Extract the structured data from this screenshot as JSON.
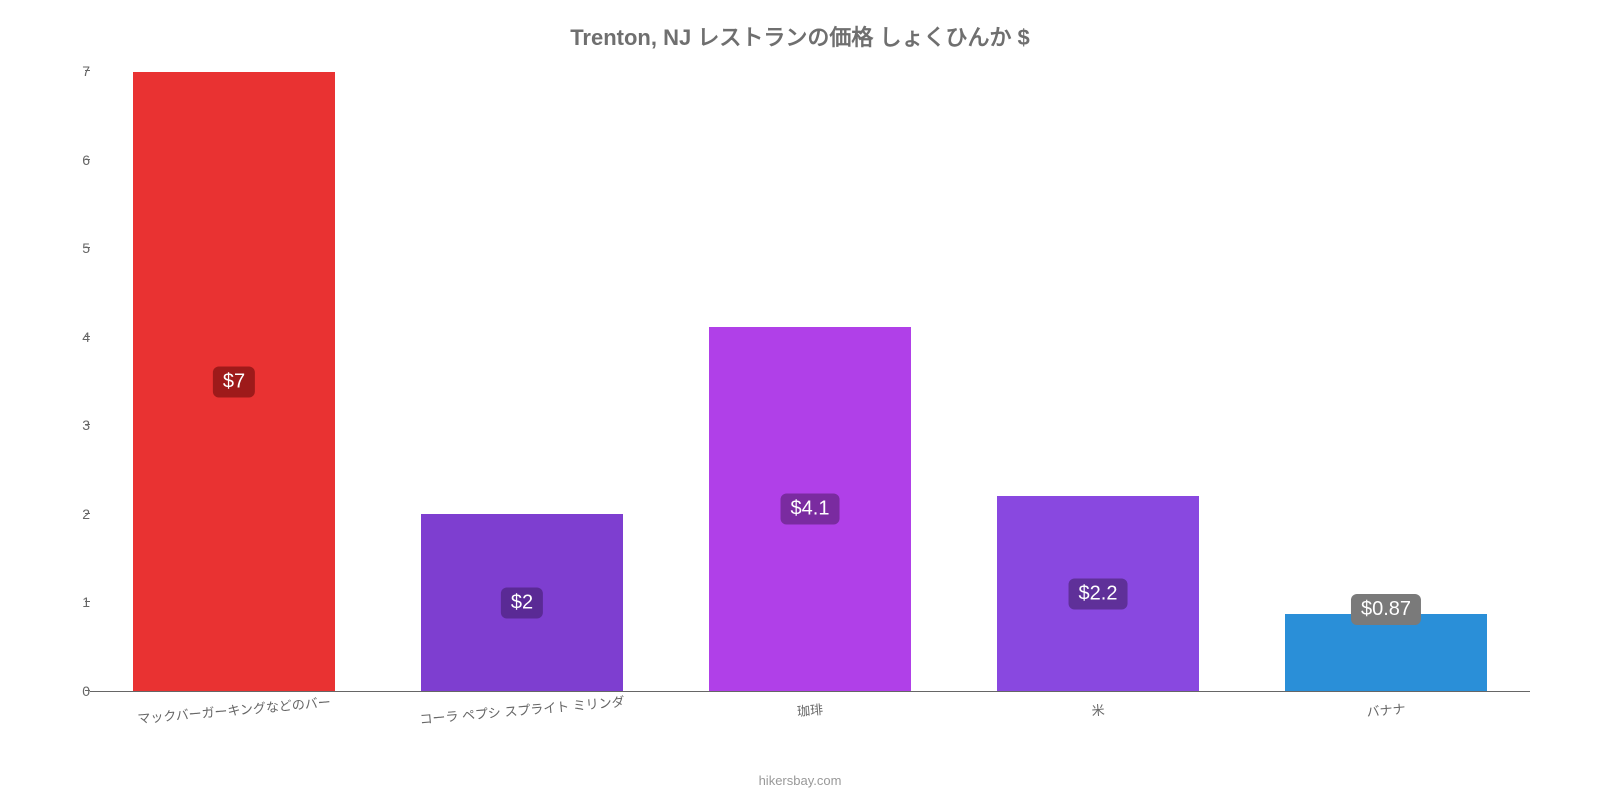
{
  "chart": {
    "type": "bar",
    "title": "Trenton, NJ レストランの価格 しょくひんか $",
    "title_fontsize": 22,
    "title_color": "#6f6f6f",
    "background_color": "#ffffff",
    "caption": "hikersbay.com",
    "caption_color": "#999999",
    "ylim": [
      0,
      7
    ],
    "ytick_step": 1,
    "yticks": [
      0,
      1,
      2,
      3,
      4,
      5,
      6,
      7
    ],
    "axis_color": "#666666",
    "label_fontsize": 13,
    "bar_width": 0.7,
    "bars": [
      {
        "category": "マックバーガーキングなどのバー",
        "value": 7,
        "display": "$7",
        "color": "#e93232",
        "badge_bg": "#9e1a1a",
        "badge_pos": "middle"
      },
      {
        "category": "コーラ ペプシ スプライト ミリンダ",
        "value": 2,
        "display": "$2",
        "color": "#7e3ed0",
        "badge_bg": "#5a2a95",
        "badge_pos": "middle"
      },
      {
        "category": "珈琲",
        "value": 4.12,
        "display": "$4.1",
        "color": "#b040e8",
        "badge_bg": "#7a2ba0",
        "badge_pos": "middle"
      },
      {
        "category": "米",
        "value": 2.2,
        "display": "$2.2",
        "color": "#8948e0",
        "badge_bg": "#5f3099",
        "badge_pos": "middle"
      },
      {
        "category": "バナナ",
        "value": 0.87,
        "display": "$0.87",
        "color": "#2a8fd8",
        "badge_bg": "#7a7a7a",
        "badge_pos": "above"
      }
    ]
  }
}
